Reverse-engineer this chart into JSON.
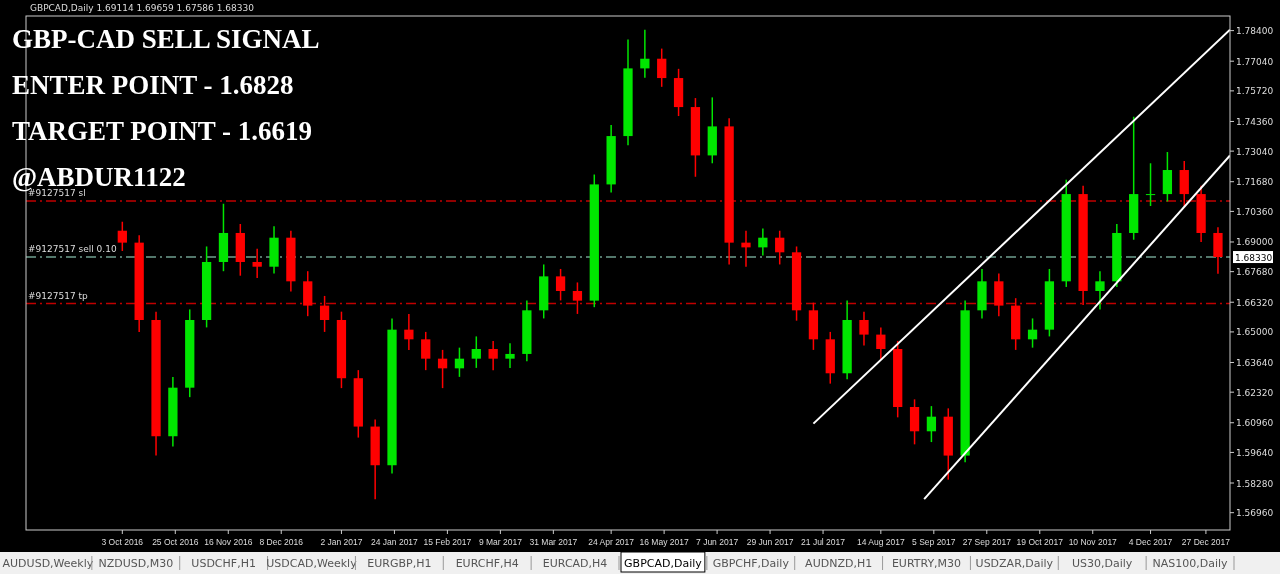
{
  "chart_data": {
    "type": "candlestick",
    "title": "GBP-CAD SELL SIGNAL",
    "annotations": [
      "GBPCAD,Daily  1.69114 1.69659 1.67586 1.68330",
      "ENTER POINT - 1.6828",
      "TARGET POINT - 1.6619",
      "@ABDUR1122",
      "1.68330",
      "AUDUSD,Weekly",
      "NZDUSD,M30",
      "USDCHF,H1",
      "USDCAD,Weekly",
      "EURGBP,H1",
      "EURCHF,H4",
      "EURCAD,H4",
      "GBPCAD,Daily",
      "GBPCHF,Daily",
      "AUDNZD,H1",
      "EURTRY,M30",
      "USDZAR,Daily",
      "US30,Daily",
      "NAS100,Daily"
    ],
    "x": [
      "2016-10-03",
      "2016-10-10",
      "2016-10-17",
      "2016-10-24",
      "2016-10-31",
      "2016-11-07",
      "2016-11-14",
      "2016-11-21",
      "2016-11-28",
      "2016-12-05",
      "2016-12-12",
      "2016-12-19",
      "2016-12-26",
      "2017-01-02",
      "2017-01-09",
      "2017-01-16",
      "2017-01-23",
      "2017-01-30",
      "2017-02-06",
      "2017-02-13",
      "2017-02-20",
      "2017-02-27",
      "2017-03-06",
      "2017-03-13",
      "2017-03-20",
      "2017-03-27",
      "2017-04-03",
      "2017-04-10",
      "2017-04-17",
      "2017-04-24",
      "2017-05-01",
      "2017-05-08",
      "2017-05-15",
      "2017-05-22",
      "2017-05-29",
      "2017-06-05",
      "2017-06-12",
      "2017-06-19",
      "2017-06-26",
      "2017-07-03",
      "2017-07-10",
      "2017-07-17",
      "2017-07-24",
      "2017-07-31",
      "2017-08-07",
      "2017-08-14",
      "2017-08-21",
      "2017-08-28",
      "2017-09-04",
      "2017-09-11",
      "2017-09-18",
      "2017-09-25",
      "2017-10-02",
      "2017-10-09",
      "2017-10-16",
      "2017-10-23",
      "2017-10-30",
      "2017-11-06",
      "2017-11-13",
      "2017-11-20",
      "2017-11-27",
      "2017-12-04",
      "2017-12-11",
      "2017-12-18",
      "2017-12-25",
      "2018-01-01"
    ],
    "ohlc": [
      [
        1.695,
        1.699,
        1.686,
        1.6897
      ],
      [
        1.6897,
        1.693,
        1.65,
        1.6553
      ],
      [
        1.6553,
        1.659,
        1.595,
        1.6036
      ],
      [
        1.6036,
        1.63,
        1.599,
        1.6252
      ],
      [
        1.6252,
        1.66,
        1.621,
        1.6553
      ],
      [
        1.6553,
        1.688,
        1.652,
        1.6811
      ],
      [
        1.6811,
        1.707,
        1.677,
        1.694
      ],
      [
        1.694,
        1.698,
        1.675,
        1.6811
      ],
      [
        1.6811,
        1.687,
        1.674,
        1.679
      ],
      [
        1.679,
        1.697,
        1.676,
        1.6919
      ],
      [
        1.6919,
        1.695,
        1.668,
        1.6725
      ],
      [
        1.6725,
        1.677,
        1.657,
        1.6617
      ],
      [
        1.6617,
        1.666,
        1.65,
        1.6553
      ],
      [
        1.6553,
        1.659,
        1.625,
        1.6294
      ],
      [
        1.6294,
        1.633,
        1.603,
        1.6079
      ],
      [
        1.6079,
        1.611,
        1.5756,
        1.5907
      ],
      [
        1.5907,
        1.656,
        1.587,
        1.651
      ],
      [
        1.651,
        1.658,
        1.642,
        1.6467
      ],
      [
        1.6467,
        1.65,
        1.633,
        1.6381
      ],
      [
        1.6381,
        1.642,
        1.625,
        1.6338
      ],
      [
        1.6338,
        1.643,
        1.63,
        1.6381
      ],
      [
        1.6381,
        1.648,
        1.634,
        1.6424
      ],
      [
        1.6424,
        1.646,
        1.633,
        1.6381
      ],
      [
        1.6381,
        1.645,
        1.634,
        1.6402
      ],
      [
        1.6402,
        1.664,
        1.637,
        1.6596
      ],
      [
        1.6596,
        1.68,
        1.656,
        1.6747
      ],
      [
        1.6747,
        1.678,
        1.664,
        1.6682
      ],
      [
        1.6682,
        1.672,
        1.658,
        1.6639
      ],
      [
        1.6639,
        1.72,
        1.661,
        1.7156
      ],
      [
        1.7156,
        1.742,
        1.712,
        1.7371
      ],
      [
        1.7371,
        1.78,
        1.733,
        1.7672
      ],
      [
        1.7672,
        1.7844,
        1.763,
        1.7715
      ],
      [
        1.7715,
        1.776,
        1.759,
        1.7629
      ],
      [
        1.7629,
        1.767,
        1.746,
        1.75
      ],
      [
        1.75,
        1.754,
        1.719,
        1.7285
      ],
      [
        1.7285,
        1.7543,
        1.725,
        1.7414
      ],
      [
        1.7414,
        1.745,
        1.68,
        1.6897
      ],
      [
        1.6897,
        1.695,
        1.679,
        1.6876
      ],
      [
        1.6876,
        1.696,
        1.684,
        1.6919
      ],
      [
        1.6919,
        1.695,
        1.68,
        1.6854
      ],
      [
        1.6854,
        1.688,
        1.655,
        1.6596
      ],
      [
        1.6596,
        1.663,
        1.642,
        1.6467
      ],
      [
        1.6467,
        1.65,
        1.627,
        1.6316
      ],
      [
        1.6316,
        1.664,
        1.629,
        1.6553
      ],
      [
        1.6553,
        1.659,
        1.644,
        1.6488
      ],
      [
        1.6488,
        1.652,
        1.638,
        1.6424
      ],
      [
        1.6424,
        1.646,
        1.612,
        1.6166
      ],
      [
        1.6166,
        1.62,
        1.6,
        1.6058
      ],
      [
        1.6058,
        1.617,
        1.601,
        1.6123
      ],
      [
        1.6123,
        1.616,
        1.5843,
        1.595
      ],
      [
        1.595,
        1.664,
        1.592,
        1.6596
      ],
      [
        1.6596,
        1.678,
        1.656,
        1.6725
      ],
      [
        1.6725,
        1.676,
        1.657,
        1.6617
      ],
      [
        1.6617,
        1.665,
        1.642,
        1.6467
      ],
      [
        1.6467,
        1.656,
        1.643,
        1.651
      ],
      [
        1.651,
        1.678,
        1.648,
        1.6725
      ],
      [
        1.6725,
        1.7177,
        1.67,
        1.7113
      ],
      [
        1.7113,
        1.715,
        1.662,
        1.6682
      ],
      [
        1.6682,
        1.677,
        1.66,
        1.6725
      ],
      [
        1.6725,
        1.698,
        1.67,
        1.694
      ],
      [
        1.694,
        1.7457,
        1.691,
        1.7113
      ],
      [
        1.7113,
        1.725,
        1.706,
        1.7113
      ],
      [
        1.7113,
        1.73,
        1.708,
        1.722
      ],
      [
        1.722,
        1.726,
        1.706,
        1.7113
      ],
      [
        1.7113,
        1.715,
        1.69,
        1.694
      ],
      [
        1.694,
        1.6966,
        1.6759,
        1.6833
      ]
    ],
    "colors": [
      "#ff0000",
      "#ff0000",
      "#ff0000",
      "#00e600",
      "#00e600",
      "#00e600",
      "#00e600",
      "#ff0000",
      "#ff0000",
      "#00e600",
      "#ff0000",
      "#ff0000",
      "#ff0000",
      "#ff0000",
      "#ff0000",
      "#ff0000",
      "#00e600",
      "#ff0000",
      "#ff0000",
      "#ff0000",
      "#00e600",
      "#00e600",
      "#ff0000",
      "#00e600",
      "#00e600",
      "#00e600",
      "#ff0000",
      "#ff0000",
      "#00e600",
      "#00e600",
      "#00e600",
      "#00e600",
      "#ff0000",
      "#ff0000",
      "#ff0000",
      "#00e600",
      "#ff0000",
      "#ff0000",
      "#00e600",
      "#ff0000",
      "#ff0000",
      "#ff0000",
      "#ff0000",
      "#00e600",
      "#ff0000",
      "#ff0000",
      "#ff0000",
      "#ff0000",
      "#00e600",
      "#ff0000",
      "#00e600",
      "#00e600",
      "#ff0000",
      "#ff0000",
      "#00e600",
      "#00e600",
      "#00e600",
      "#ff0000",
      "#00e600",
      "#00e600",
      "#00e600",
      "#00e600",
      "#00e600",
      "#ff0000",
      "#ff0000",
      "#ff0000"
    ],
    "series": [
      {
        "type": "line",
        "color": "#ffffff",
        "x": [
          "2017-07-17",
          "2018-01-06"
        ],
        "values": [
          1.6092,
          1.7844
        ]
      },
      {
        "type": "line",
        "color": "#ffffff",
        "x": [
          "2017-09-01",
          "2018-01-06"
        ],
        "values": [
          1.5756,
          1.7285
        ]
      }
    ],
    "ref_lines": [
      {
        "axis": "y",
        "value": 1.7082,
        "label": "#9127517 sl",
        "color": "#c00000",
        "line_style": "dashed"
      },
      {
        "axis": "y",
        "value": 1.6833,
        "label": "#9127517 sell 0.10",
        "color": "#6f9f8f",
        "line_style": "dashed"
      },
      {
        "axis": "y",
        "value": 1.6626,
        "label": "#9127517 tp",
        "color": "#c00000",
        "line_style": "dashed"
      }
    ],
    "xlim": [
      "2016-08-24",
      "2018-01-06"
    ],
    "xticks": [
      {
        "value": "2016-10-03",
        "label": "3 Oct 2016"
      },
      {
        "value": "2016-10-25",
        "label": "25 Oct 2016"
      },
      {
        "value": "2016-11-16",
        "label": "16 Nov 2016"
      },
      {
        "value": "2016-12-08",
        "label": "8 Dec 2016"
      },
      {
        "value": "2017-01-02",
        "label": "2 Jan 2017"
      },
      {
        "value": "2017-01-24",
        "label": "24 Jan 2017"
      },
      {
        "value": "2017-02-15",
        "label": "15 Feb 2017"
      },
      {
        "value": "2017-03-09",
        "label": "9 Mar 2017"
      },
      {
        "value": "2017-03-31",
        "label": "31 Mar 2017"
      },
      {
        "value": "2017-04-24",
        "label": "24 Apr 2017"
      },
      {
        "value": "2017-05-16",
        "label": "16 May 2017"
      },
      {
        "value": "2017-06-07",
        "label": "7 Jun 2017"
      },
      {
        "value": "2017-06-29",
        "label": "29 Jun 2017"
      },
      {
        "value": "2017-07-21",
        "label": "21 Jul 2017"
      },
      {
        "value": "2017-08-14",
        "label": "14 Aug 2017"
      },
      {
        "value": "2017-09-05",
        "label": "5 Sep 2017"
      },
      {
        "value": "2017-09-27",
        "label": "27 Sep 2017"
      },
      {
        "value": "2017-10-19",
        "label": "19 Oct 2017"
      },
      {
        "value": "2017-11-10",
        "label": "10 Nov 2017"
      },
      {
        "value": "2017-12-04",
        "label": "4 Dec 2017"
      },
      {
        "value": "2017-12-27",
        "label": "27 Dec 2017"
      }
    ],
    "ylim": [
      1.5619,
      1.7905
    ],
    "yticks": [
      {
        "value": 1.5696,
        "label": "1.56960"
      },
      {
        "value": 1.5828,
        "label": "1.58280"
      },
      {
        "value": 1.5964,
        "label": "1.59640"
      },
      {
        "value": 1.6096,
        "label": "1.60960"
      },
      {
        "value": 1.6232,
        "label": "1.62320"
      },
      {
        "value": 1.6364,
        "label": "1.63640"
      },
      {
        "value": 1.65,
        "label": "1.65000"
      },
      {
        "value": 1.6632,
        "label": "1.66320"
      },
      {
        "value": 1.6768,
        "label": "1.67680"
      },
      {
        "value": 1.69,
        "label": "1.69000"
      },
      {
        "value": 1.7036,
        "label": "1.70360"
      },
      {
        "value": 1.7168,
        "label": "1.71680"
      },
      {
        "value": 1.7304,
        "label": "1.73040"
      },
      {
        "value": 1.7436,
        "label": "1.74360"
      },
      {
        "value": 1.7572,
        "label": "1.75720"
      },
      {
        "value": 1.7704,
        "label": "1.77040"
      },
      {
        "value": 1.784,
        "label": "1.78400"
      }
    ],
    "grid": false
  }
}
